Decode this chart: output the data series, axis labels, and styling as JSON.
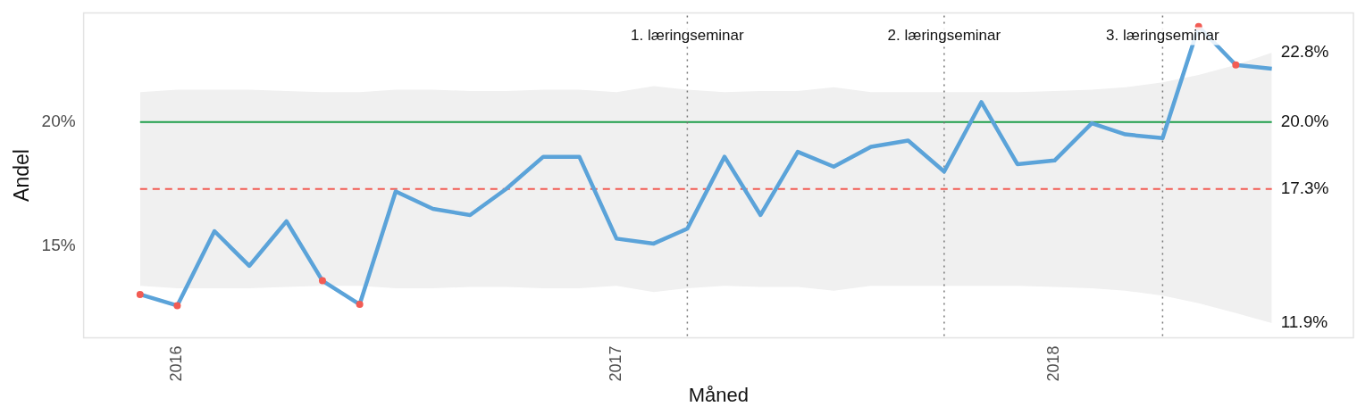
{
  "chart_data": {
    "type": "line",
    "xlabel": "Måned",
    "ylabel": "Andel",
    "x": [
      "2015-12",
      "2016-01",
      "2016-02",
      "2016-03",
      "2016-04",
      "2016-05",
      "2016-06",
      "2016-07",
      "2016-08",
      "2016-09",
      "2016-10",
      "2016-11",
      "2016-12",
      "2017-01",
      "2017-02",
      "2017-03",
      "2017-04",
      "2017-05",
      "2017-06",
      "2017-07",
      "2017-08",
      "2017-09",
      "2017-10",
      "2017-11",
      "2017-12",
      "2018-01",
      "2018-02",
      "2018-03",
      "2018-04",
      "2018-05",
      "2018-06",
      "2018-07"
    ],
    "series": [
      {
        "color": "#5ba3d9",
        "values": [
          13.05,
          12.6,
          15.6,
          14.2,
          16.0,
          13.6,
          12.65,
          17.2,
          16.5,
          16.25,
          17.3,
          18.6,
          18.6,
          15.3,
          15.1,
          15.7,
          18.6,
          16.25,
          18.8,
          18.2,
          19.0,
          19.25,
          18.0,
          20.8,
          18.3,
          18.45,
          19.95,
          19.5,
          19.35,
          23.85,
          22.3,
          22.15
        ],
        "lower": [
          13.4,
          13.3,
          13.3,
          13.3,
          13.35,
          13.4,
          13.4,
          13.3,
          13.3,
          13.35,
          13.35,
          13.3,
          13.3,
          13.4,
          13.15,
          13.3,
          13.4,
          13.35,
          13.35,
          13.2,
          13.4,
          13.4,
          13.4,
          13.4,
          13.4,
          13.35,
          13.3,
          13.2,
          13.0,
          12.7,
          12.3,
          11.9
        ],
        "upper": [
          21.2,
          21.3,
          21.3,
          21.3,
          21.25,
          21.2,
          21.2,
          21.3,
          21.3,
          21.25,
          21.25,
          21.3,
          21.3,
          21.2,
          21.45,
          21.3,
          21.2,
          21.25,
          21.25,
          21.4,
          21.2,
          21.2,
          21.2,
          21.2,
          21.2,
          21.25,
          21.3,
          21.4,
          21.6,
          21.9,
          22.3,
          22.8
        ]
      },
      {
        "type": "scatter",
        "color": "#f25c54",
        "x": [
          "2015-12",
          "2016-01",
          "2016-05",
          "2016-06",
          "2018-05",
          "2018-06"
        ],
        "values": [
          13.05,
          12.6,
          13.6,
          12.65,
          23.85,
          22.3
        ]
      }
    ],
    "xlim": [
      "2015-10-15",
      "2018-09-07"
    ],
    "xticks": [
      "2016",
      "2017",
      "2018"
    ],
    "ylim": [
      11.3,
      24.4
    ],
    "yticks": [
      {
        "value": 15,
        "label": "15%"
      },
      {
        "value": 20,
        "label": "20%"
      }
    ],
    "ref_lines": [
      {
        "axis": "y",
        "value": 20,
        "label": "20.0%",
        "color": "#1e9e4a",
        "line_style": "solid"
      },
      {
        "axis": "y",
        "value": 17.3,
        "label": "17.3%",
        "color": "#f25c54",
        "line_style": "dashed"
      },
      {
        "axis": "x",
        "value": "2017-03",
        "label": "1. læringseminar",
        "color": "#777777",
        "line_style": "dotted"
      },
      {
        "axis": "x",
        "value": "2017-10",
        "label": "2. læringseminar",
        "color": "#777777",
        "line_style": "dotted"
      },
      {
        "axis": "x",
        "value": "2018-04",
        "label": "3. læringseminar",
        "color": "#777777",
        "line_style": "dotted"
      }
    ],
    "annotations": [
      {
        "text": "22.8%",
        "x": "2018-07",
        "y": 22.8
      },
      {
        "text": "11.9%",
        "x": "2018-07",
        "y": 11.9
      }
    ]
  }
}
